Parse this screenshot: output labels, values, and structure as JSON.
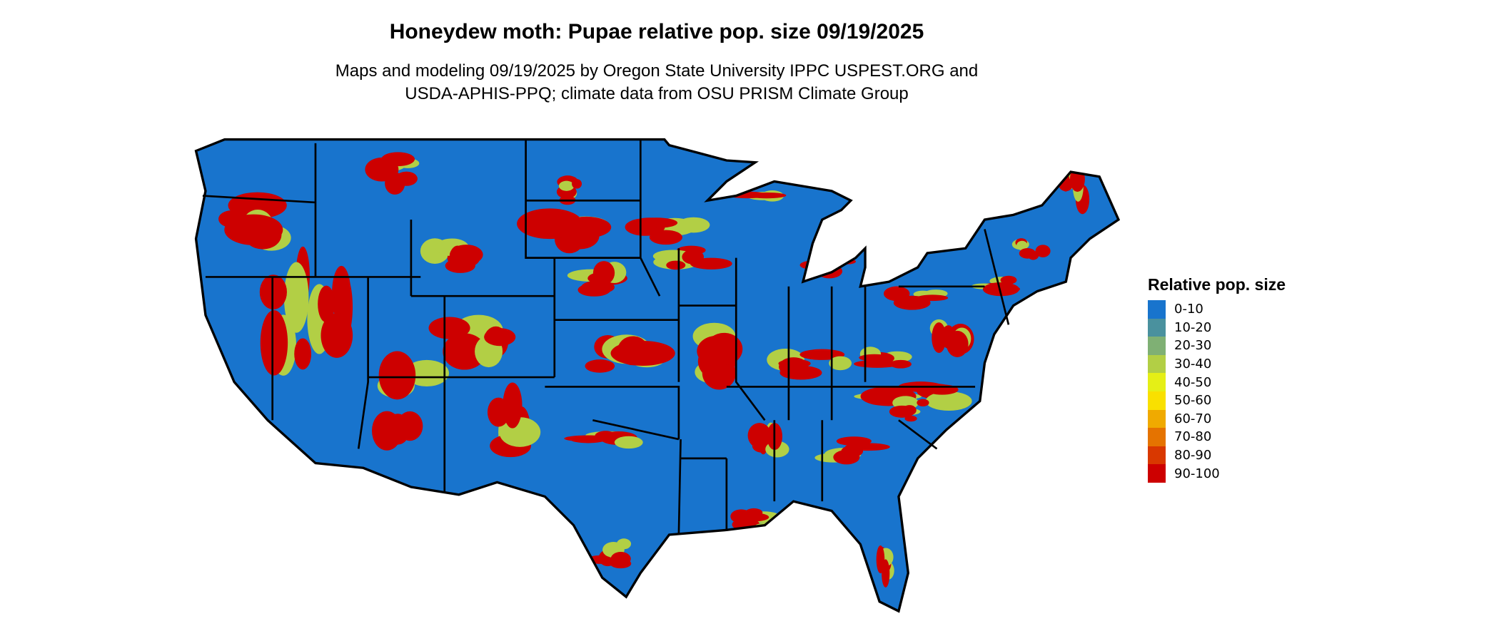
{
  "title": "Honeydew moth: Pupae relative pop. size 09/19/2025",
  "subtitle_lines": [
    "Maps and modeling 09/19/2025 by Oregon State University IPPC USPEST.ORG and",
    "USDA-APHIS-PPQ; climate data from OSU PRISM Climate Group"
  ],
  "legend": {
    "title": "Relative pop. size",
    "items": [
      {
        "label": "0-10",
        "color": "#1874CD"
      },
      {
        "label": "10-20",
        "color": "#4A919E"
      },
      {
        "label": "20-30",
        "color": "#7FB074"
      },
      {
        "label": "30-40",
        "color": "#B2CF45"
      },
      {
        "label": "40-50",
        "color": "#E5EF16"
      },
      {
        "label": "50-60",
        "color": "#F9E000"
      },
      {
        "label": "60-70",
        "color": "#F0AA00"
      },
      {
        "label": "70-80",
        "color": "#E57300"
      },
      {
        "label": "80-90",
        "color": "#D93800"
      },
      {
        "label": "90-100",
        "color": "#CD0000"
      }
    ]
  },
  "map": {
    "region": "Contiguous United States",
    "dominant_class": "0-10",
    "border_color": "#000000"
  }
}
